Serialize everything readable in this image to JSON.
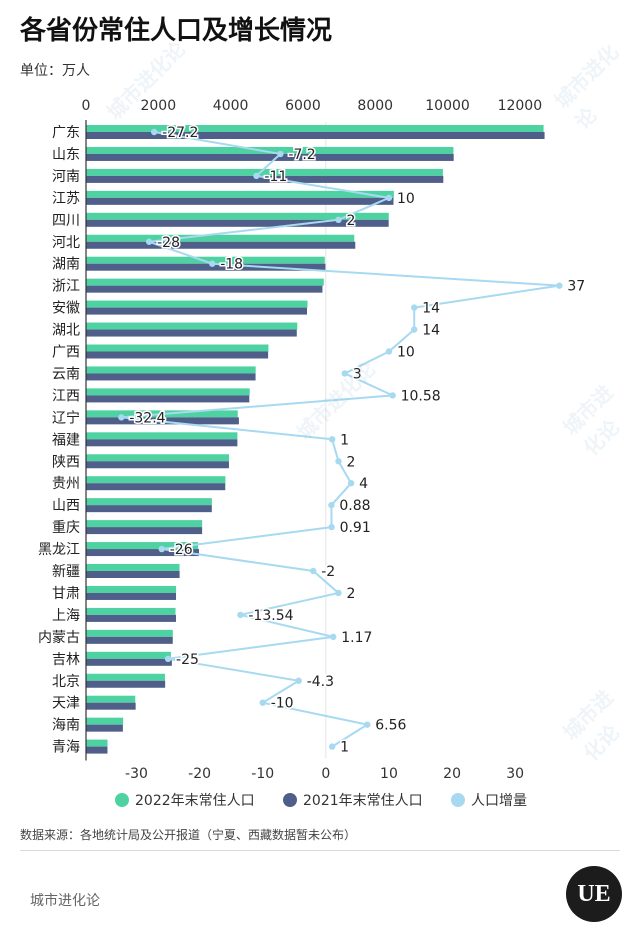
{
  "title": "各省份常住人口及增长情况",
  "unit_label": "单位：万人",
  "source": "数据来源：各地统计局及公开报道（宁夏、西藏数据暂未公布）",
  "brand": "城市进化论",
  "logo_text": "UE",
  "watermark": "城市进化论",
  "colors": {
    "pop2022": "#4fd2a1",
    "pop2021": "#4f5f8a",
    "growth": "#a7d9f1"
  },
  "chart_data": {
    "type": "bar",
    "orientation": "horizontal",
    "categories": [
      "广东",
      "山东",
      "河南",
      "江苏",
      "四川",
      "河北",
      "湖南",
      "浙江",
      "安徽",
      "湖北",
      "广西",
      "云南",
      "江西",
      "辽宁",
      "福建",
      "陕西",
      "贵州",
      "山西",
      "重庆",
      "黑龙江",
      "新疆",
      "甘肃",
      "上海",
      "内蒙古",
      "吉林",
      "北京",
      "天津",
      "海南",
      "青海"
    ],
    "series": [
      {
        "name": "2022年末常住人口",
        "type": "bar",
        "axis": "top",
        "values": [
          12657,
          10163,
          9872,
          8515,
          8374,
          7420,
          6604,
          6577,
          6127,
          5844,
          5047,
          4693,
          4528,
          4197,
          4188,
          3956,
          3856,
          3481,
          3213,
          3099,
          2587,
          2492,
          2476,
          2401,
          2348,
          2184,
          1363,
          1027,
          595
        ]
      },
      {
        "name": "2021年末常住人口",
        "type": "bar",
        "axis": "top",
        "values": [
          12684,
          10170,
          9883,
          8505,
          8372,
          7448,
          6622,
          6540,
          6113,
          5830,
          5037,
          4690,
          4517,
          4229,
          4187,
          3954,
          3852,
          3480,
          3212,
          3125,
          2589,
          2490,
          2489,
          2400,
          2375,
          2189,
          1373,
          1020,
          594
        ]
      },
      {
        "name": "人口增量",
        "type": "line",
        "axis": "bottom",
        "values": [
          -27.2,
          -7.2,
          -11,
          10,
          2,
          -28,
          -18,
          37,
          14,
          14,
          10,
          3,
          10.58,
          -32.4,
          1,
          2,
          4,
          0.88,
          0.91,
          -26,
          -2,
          2,
          -13.54,
          1.17,
          -25,
          -4.3,
          -10,
          6.56,
          1
        ],
        "labels": [
          "-27.2",
          "-7.2",
          "-11",
          "10",
          "2",
          "-28",
          "-18",
          "37",
          "14",
          "14",
          "10",
          "3",
          "10.58",
          "-32.4",
          "1",
          "2",
          "4",
          "0.88",
          "0.91",
          "-26",
          "-2",
          "2",
          "-13.54",
          "1.17",
          "-25",
          "-4.3",
          "-10",
          "6.56",
          "1"
        ]
      }
    ],
    "top_axis": {
      "range": [
        0,
        13000
      ],
      "ticks": [
        0,
        2000,
        4000,
        6000,
        8000,
        10000,
        12000
      ],
      "tick_labels": [
        "0",
        "2000",
        "4000",
        "6000",
        "8000",
        "10000",
        "12000"
      ]
    },
    "bottom_axis": {
      "range": [
        -38,
        39
      ],
      "ticks": [
        -30,
        -20,
        -10,
        0,
        10,
        20,
        30
      ],
      "tick_labels": [
        "-30",
        "-20",
        "-10",
        "0",
        "10",
        "20",
        "30"
      ]
    },
    "legend_position": "bottom"
  }
}
